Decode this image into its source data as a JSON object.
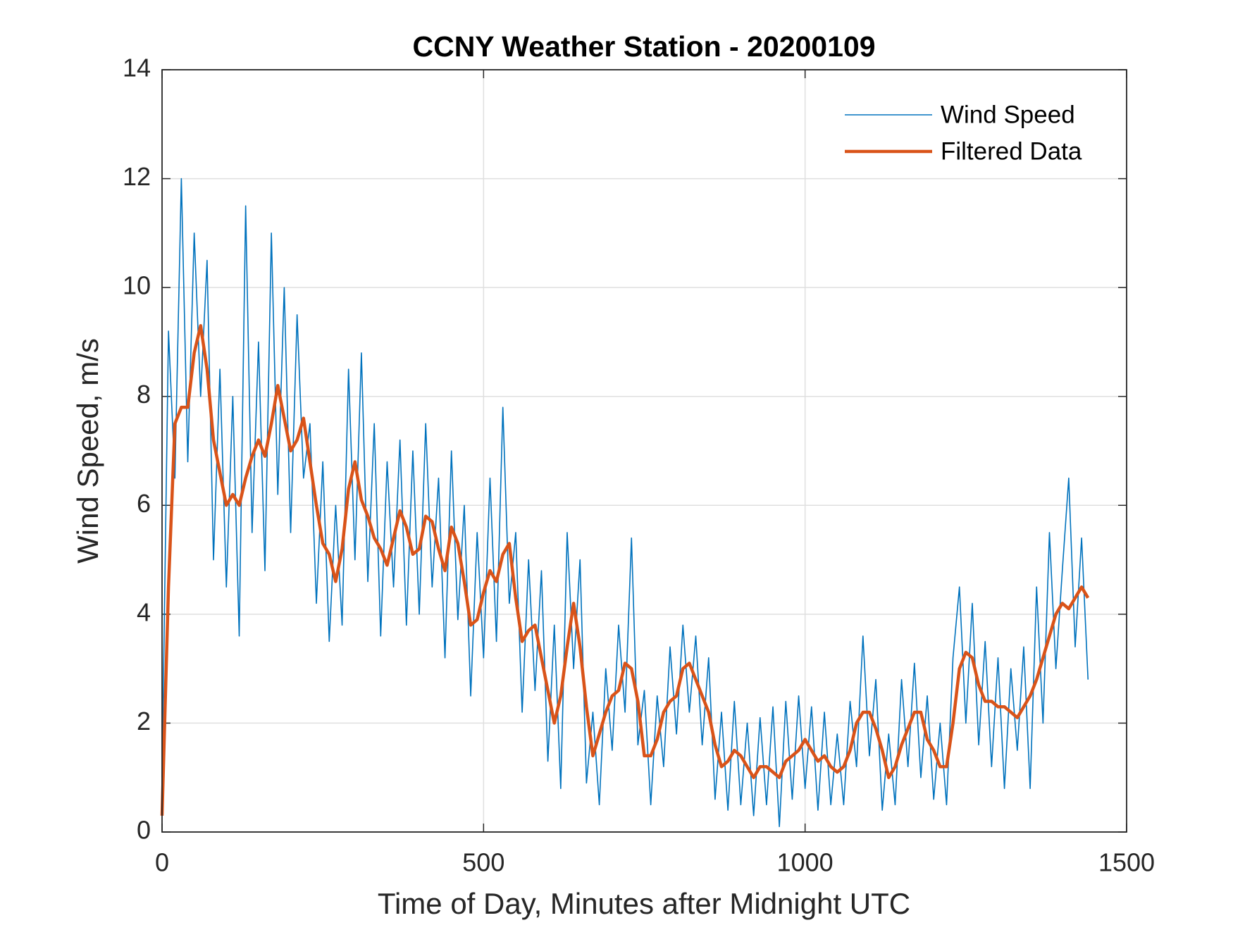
{
  "chart_data": {
    "type": "line",
    "title": "CCNY Weather Station - 20200109",
    "xlabel": "Time of Day, Minutes after Midnight UTC",
    "ylabel": "Wind Speed, m/s",
    "xlim": [
      0,
      1500
    ],
    "xticks": [
      0,
      500,
      1000,
      1500
    ],
    "ylim": [
      0,
      14
    ],
    "yticks": [
      0,
      2,
      4,
      6,
      8,
      10,
      12,
      14
    ],
    "grid": true,
    "legend": "upper-right",
    "x": [
      0,
      10,
      20,
      30,
      40,
      50,
      60,
      70,
      80,
      90,
      100,
      110,
      120,
      130,
      140,
      150,
      160,
      170,
      180,
      190,
      200,
      210,
      220,
      230,
      240,
      250,
      260,
      270,
      280,
      290,
      300,
      310,
      320,
      330,
      340,
      350,
      360,
      370,
      380,
      390,
      400,
      410,
      420,
      430,
      440,
      450,
      460,
      470,
      480,
      490,
      500,
      510,
      520,
      530,
      540,
      550,
      560,
      570,
      580,
      590,
      600,
      610,
      620,
      630,
      640,
      650,
      660,
      670,
      680,
      690,
      700,
      710,
      720,
      730,
      740,
      750,
      760,
      770,
      780,
      790,
      800,
      810,
      820,
      830,
      840,
      850,
      860,
      870,
      880,
      890,
      900,
      910,
      920,
      930,
      940,
      950,
      960,
      970,
      980,
      990,
      1000,
      1010,
      1020,
      1030,
      1040,
      1050,
      1060,
      1070,
      1080,
      1090,
      1100,
      1110,
      1120,
      1130,
      1140,
      1150,
      1160,
      1170,
      1180,
      1190,
      1200,
      1210,
      1220,
      1230,
      1240,
      1250,
      1260,
      1270,
      1280,
      1290,
      1300,
      1310,
      1320,
      1330,
      1340,
      1350,
      1360,
      1370,
      1380,
      1390,
      1400,
      1410,
      1420,
      1430,
      1440
    ],
    "series": [
      {
        "name": "Wind Speed",
        "color": "#0072bd",
        "width": 1.6,
        "values": [
          1.0,
          9.2,
          6.5,
          12.0,
          6.8,
          11.0,
          8.0,
          10.5,
          5.0,
          8.5,
          4.5,
          8.0,
          3.6,
          11.5,
          5.5,
          9.0,
          4.8,
          11.0,
          6.2,
          10.0,
          5.5,
          9.5,
          6.5,
          7.5,
          4.2,
          6.8,
          3.5,
          6.0,
          3.8,
          8.5,
          5.0,
          8.8,
          4.6,
          7.5,
          3.6,
          6.8,
          4.5,
          7.2,
          3.8,
          7.0,
          4.0,
          7.5,
          4.5,
          6.5,
          3.2,
          7.0,
          3.9,
          6.0,
          2.5,
          5.5,
          3.2,
          6.5,
          3.5,
          7.8,
          4.2,
          5.5,
          2.2,
          5.0,
          2.6,
          4.8,
          1.3,
          3.8,
          0.8,
          5.5,
          3.0,
          5.0,
          0.9,
          2.2,
          0.5,
          3.0,
          1.5,
          3.8,
          2.2,
          5.4,
          1.6,
          2.6,
          0.5,
          2.5,
          1.2,
          3.4,
          1.8,
          3.8,
          2.2,
          3.6,
          1.6,
          3.2,
          0.6,
          2.2,
          0.4,
          2.4,
          0.5,
          2.0,
          0.3,
          2.1,
          0.5,
          2.3,
          0.1,
          2.4,
          0.6,
          2.5,
          0.8,
          2.3,
          0.4,
          2.2,
          0.5,
          1.8,
          0.5,
          2.4,
          1.2,
          3.6,
          1.4,
          2.8,
          0.4,
          1.8,
          0.5,
          2.8,
          1.2,
          3.1,
          1.0,
          2.5,
          0.6,
          2.0,
          0.5,
          3.2,
          4.5,
          2.0,
          4.2,
          1.6,
          3.5,
          1.2,
          3.2,
          0.8,
          3.0,
          1.5,
          3.4,
          0.8,
          4.5,
          2.0,
          5.5,
          3.0,
          4.8,
          6.5,
          3.4,
          5.4,
          2.8
        ]
      },
      {
        "name": "Filtered Data",
        "color": "#d95319",
        "width": 4.5,
        "values": [
          0.3,
          4.5,
          7.5,
          7.8,
          7.8,
          8.8,
          9.3,
          8.5,
          7.2,
          6.6,
          6.0,
          6.2,
          6.0,
          6.5,
          6.9,
          7.2,
          6.9,
          7.5,
          8.2,
          7.6,
          7.0,
          7.2,
          7.6,
          6.8,
          6.0,
          5.3,
          5.1,
          4.6,
          5.2,
          6.3,
          6.8,
          6.1,
          5.8,
          5.4,
          5.2,
          4.9,
          5.4,
          5.9,
          5.6,
          5.1,
          5.2,
          5.8,
          5.7,
          5.2,
          4.8,
          5.6,
          5.3,
          4.6,
          3.8,
          3.9,
          4.4,
          4.8,
          4.6,
          5.1,
          5.3,
          4.3,
          3.5,
          3.7,
          3.8,
          3.2,
          2.6,
          2.0,
          2.5,
          3.4,
          4.2,
          3.4,
          2.3,
          1.4,
          1.8,
          2.2,
          2.5,
          2.6,
          3.1,
          3.0,
          2.4,
          1.4,
          1.4,
          1.7,
          2.2,
          2.4,
          2.5,
          3.0,
          3.1,
          2.8,
          2.5,
          2.2,
          1.6,
          1.2,
          1.3,
          1.5,
          1.4,
          1.2,
          1.0,
          1.2,
          1.2,
          1.1,
          1.0,
          1.3,
          1.4,
          1.5,
          1.7,
          1.5,
          1.3,
          1.4,
          1.2,
          1.1,
          1.2,
          1.5,
          2.0,
          2.2,
          2.2,
          1.9,
          1.5,
          1.0,
          1.2,
          1.6,
          1.9,
          2.2,
          2.2,
          1.7,
          1.5,
          1.2,
          1.2,
          2.0,
          3.0,
          3.3,
          3.2,
          2.7,
          2.4,
          2.4,
          2.3,
          2.3,
          2.2,
          2.1,
          2.3,
          2.5,
          2.8,
          3.2,
          3.6,
          4.0,
          4.2,
          4.1,
          4.3,
          4.5,
          4.3
        ]
      }
    ]
  }
}
